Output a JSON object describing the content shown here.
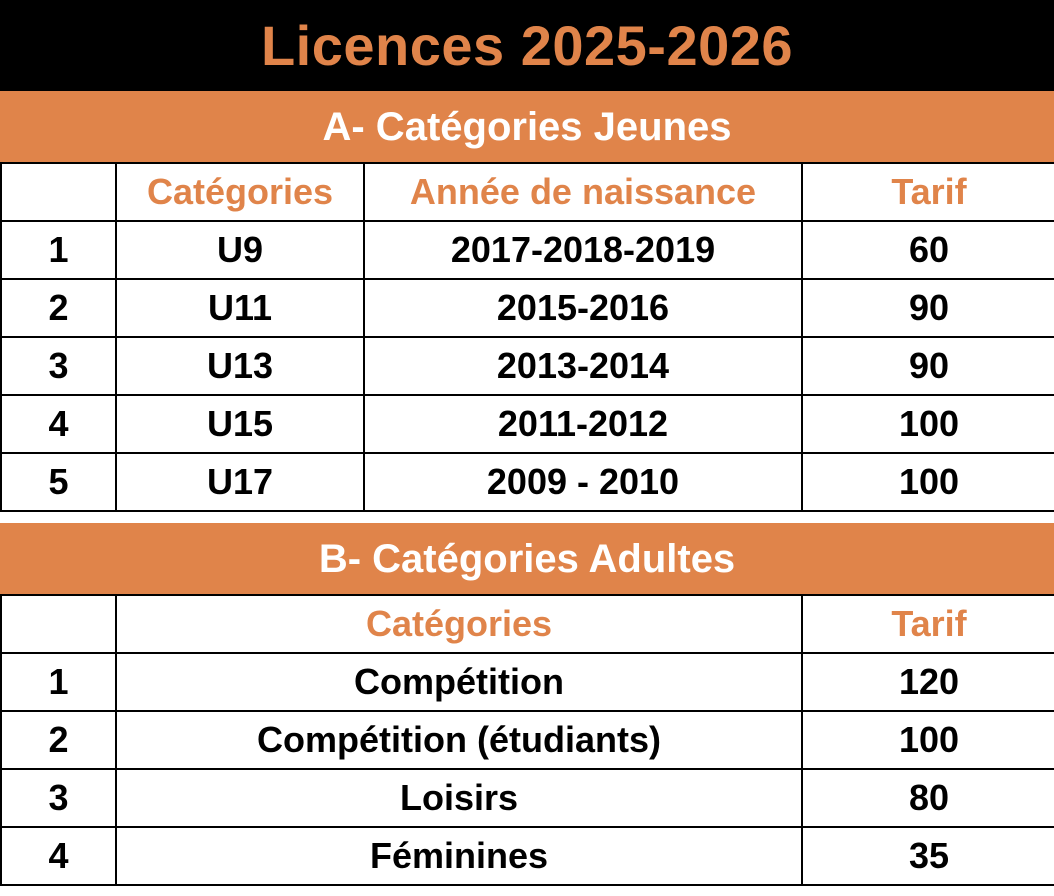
{
  "title": "Licences 2025-2026",
  "colors": {
    "accent": "#E0844A",
    "title_bg": "#000000",
    "text": "#000000",
    "section_text": "#FFFFFF"
  },
  "section_a": {
    "heading": "A- Catégories Jeunes",
    "columns": [
      "",
      "Catégories",
      "Année de naissance",
      "Tarif"
    ],
    "rows": [
      [
        "1",
        "U9",
        "2017-2018-2019",
        "60"
      ],
      [
        "2",
        "U11",
        "2015-2016",
        "90"
      ],
      [
        "3",
        "U13",
        "2013-2014",
        "90"
      ],
      [
        "4",
        "U15",
        "2011-2012",
        "100"
      ],
      [
        "5",
        "U17",
        "2009 - 2010",
        "100"
      ]
    ]
  },
  "section_b": {
    "heading": "B- Catégories Adultes",
    "columns": [
      "",
      "Catégories",
      "Tarif"
    ],
    "rows": [
      [
        "1",
        "Compétition",
        "120"
      ],
      [
        "2",
        "Compétition (étudiants)",
        "100"
      ],
      [
        "3",
        "Loisirs",
        "80"
      ],
      [
        "4",
        "Féminines",
        "35"
      ]
    ]
  }
}
